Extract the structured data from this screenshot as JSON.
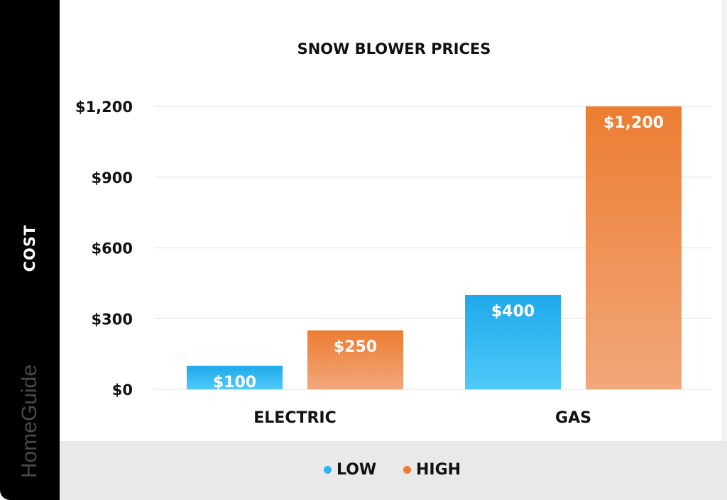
{
  "chart_data": {
    "type": "bar",
    "title": "SNOW BLOWER PRICES",
    "xlabel": "",
    "ylabel": "COST",
    "categories": [
      "ELECTRIC",
      "GAS"
    ],
    "series": [
      {
        "name": "LOW",
        "values": [
          100,
          400
        ],
        "labels": [
          "$100",
          "$400"
        ],
        "color": "#29b6f6"
      },
      {
        "name": "HIGH",
        "values": [
          250,
          1200
        ],
        "labels": [
          "$250",
          "$1,200"
        ],
        "color": "#ed7d31"
      }
    ],
    "ylim": [
      0,
      1200
    ],
    "yticks": [
      0,
      300,
      600,
      900,
      1200
    ],
    "ytick_labels": [
      "$0",
      "$300",
      "$600",
      "$900",
      "$1,200"
    ],
    "grid": true,
    "legend": "bottom-center"
  },
  "brand": "HomeGuide"
}
